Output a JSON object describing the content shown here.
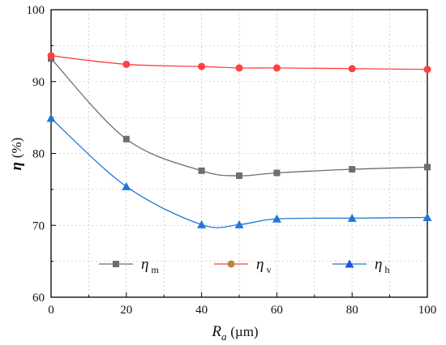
{
  "chart_data": {
    "type": "line",
    "xlabel": {
      "symbol": "R",
      "sub": "a",
      "unit": "(µm)"
    },
    "ylabel": {
      "symbol": "η",
      "unit": "(%)"
    },
    "xlim": [
      0,
      100
    ],
    "ylim": [
      60,
      100
    ],
    "xticks": [
      0,
      20,
      40,
      60,
      80,
      100
    ],
    "yticks": [
      60,
      70,
      80,
      90,
      100
    ],
    "grid": true,
    "legend_position": "bottom",
    "series": [
      {
        "key": "m",
        "name": "η",
        "sub": "m",
        "color": "#6e6e6e",
        "marker": "square",
        "x": [
          0,
          20,
          40,
          50,
          60,
          80,
          100
        ],
        "y": [
          93.2,
          82.0,
          77.6,
          76.9,
          77.3,
          77.8,
          78.1
        ]
      },
      {
        "key": "v",
        "name": "η",
        "sub": "v",
        "color": "#ff4040",
        "marker": "circle",
        "x": [
          0,
          20,
          40,
          50,
          60,
          80,
          100
        ],
        "y": [
          93.6,
          92.4,
          92.1,
          91.9,
          91.9,
          91.8,
          91.7
        ]
      },
      {
        "key": "h",
        "name": "η",
        "sub": "h",
        "color": "#1f78d8",
        "marker": "triangle",
        "x": [
          0,
          20,
          40,
          50,
          60,
          80,
          100
        ],
        "y": [
          84.9,
          75.4,
          70.1,
          70.1,
          70.9,
          71.0,
          71.1
        ]
      }
    ]
  }
}
